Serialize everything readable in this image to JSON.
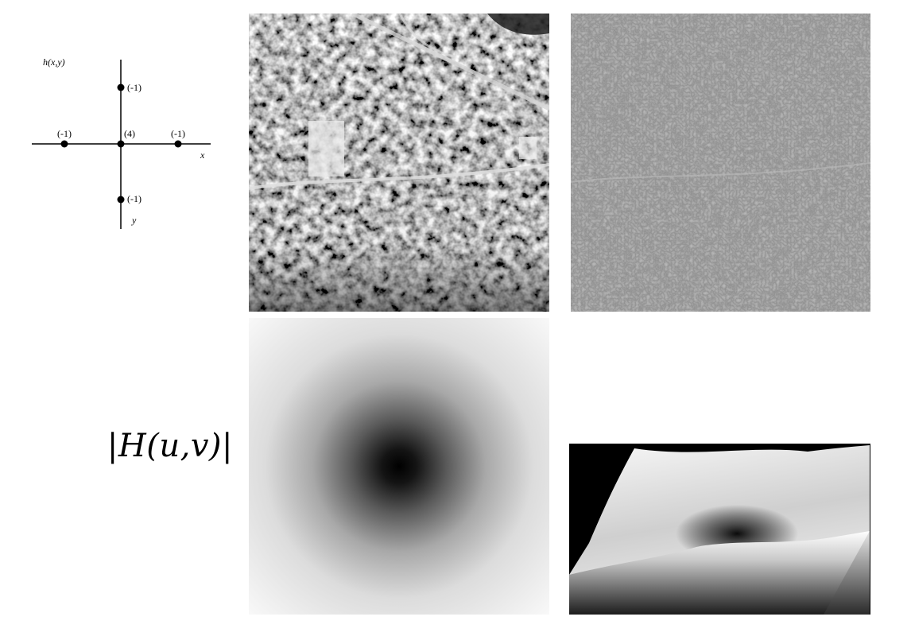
{
  "kernel": {
    "function_label": "h(x,y)",
    "x_axis_label": "x",
    "y_axis_label": "y",
    "coefficients": {
      "top": "(-1)",
      "left": "(-1)",
      "center": "(4)",
      "right": "(-1)",
      "bottom": "(-1)"
    }
  },
  "frequency_label": "|H(u,v)|",
  "colors": {
    "background": "#ffffff",
    "axis": "#000000",
    "filtered_gray": "#8e8e8e",
    "surface_background": "#000000"
  }
}
